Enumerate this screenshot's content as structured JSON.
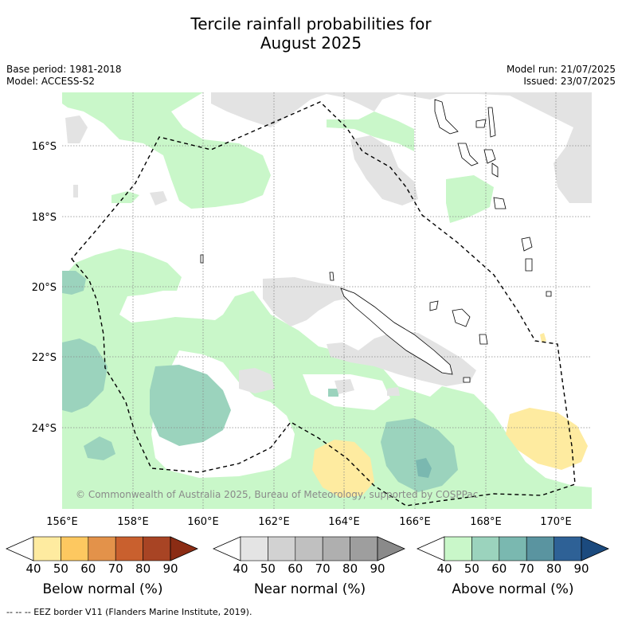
{
  "title_line1": "Tercile rainfall probabilities for",
  "title_line2": "August 2025",
  "meta_left": {
    "base_period": "Base period: 1981-2018",
    "model": "Model: ACCESS-S2"
  },
  "meta_right": {
    "model_run": "Model run: 21/07/2025",
    "issued": "Issued: 23/07/2025"
  },
  "map": {
    "lat_labels": [
      "16°S",
      "18°S",
      "20°S",
      "22°S",
      "24°S"
    ],
    "lon_labels": [
      "156°E",
      "158°E",
      "160°E",
      "162°E",
      "164°E",
      "166°E",
      "168°E",
      "170°E"
    ],
    "copyright": "© Commonwealth of Australia 2025, Bureau of Meteorology, supported by COSPPac",
    "colors": {
      "above_50": "#c9f7c9",
      "above_60": "#9bd3bd",
      "above_70": "#7ab8b0",
      "near_50": "#e3e3e3",
      "below_50": "#feeba0",
      "eez": "#000000"
    }
  },
  "colorbars": [
    {
      "label": "Below normal (%)",
      "ticks": [
        "40",
        "50",
        "60",
        "70",
        "80",
        "90"
      ],
      "colors": [
        "#ffffff",
        "#feeba0",
        "#fdc860",
        "#e3924a",
        "#c9602e",
        "#a84424",
        "#8b2c14"
      ]
    },
    {
      "label": "Near normal (%)",
      "ticks": [
        "40",
        "50",
        "60",
        "70",
        "80",
        "90"
      ],
      "colors": [
        "#ffffff",
        "#e4e4e4",
        "#d2d2d2",
        "#c0c0c0",
        "#afafaf",
        "#9e9e9e",
        "#8a8a8a"
      ]
    },
    {
      "label": "Above normal (%)",
      "ticks": [
        "40",
        "50",
        "60",
        "70",
        "80",
        "90"
      ],
      "colors": [
        "#ffffff",
        "#c9f7c9",
        "#9bd3bd",
        "#7ab8b0",
        "#5a94a0",
        "#2e6196",
        "#1b4a7e"
      ]
    }
  ],
  "footer": "-- -- -- EEZ border V11 (Flanders Marine Institute, 2019)."
}
